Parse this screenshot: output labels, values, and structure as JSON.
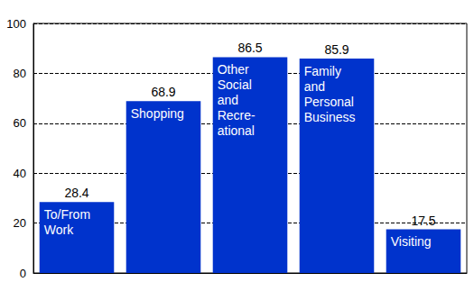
{
  "chart_data": {
    "type": "bar",
    "categories": [
      "To/From\nWork",
      "Shopping",
      "Other\nSocial\nand\nRecre-\national",
      "Family\nand\nPersonal\nBusiness",
      "Visiting"
    ],
    "values": [
      28.4,
      68.9,
      86.5,
      85.9,
      17.5
    ],
    "color": "#0033cc",
    "ylim": [
      0,
      100
    ],
    "yticks": [
      0,
      20,
      40,
      60,
      80,
      100
    ],
    "grid": true,
    "data_labels": true,
    "tick_labels": "y"
  }
}
